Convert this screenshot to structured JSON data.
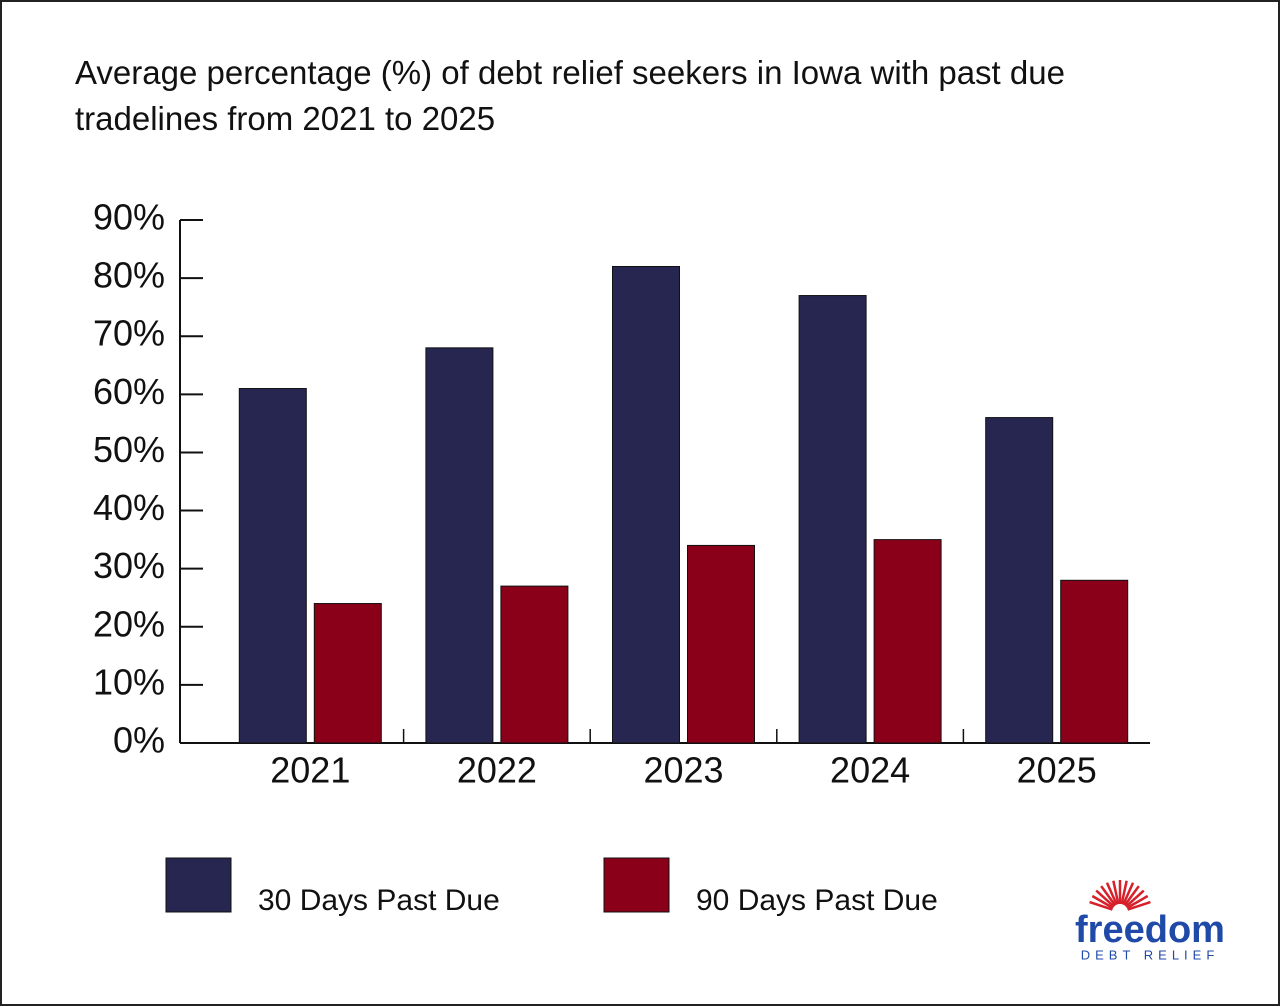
{
  "chart_data": {
    "type": "bar",
    "title": "Average percentage (%) of debt relief seekers in Iowa with past due tradelines from 2021 to 2025",
    "categories": [
      "2021",
      "2022",
      "2023",
      "2024",
      "2025"
    ],
    "series": [
      {
        "name": "30 Days Past Due",
        "color": "#272651",
        "values": [
          61,
          68,
          82,
          77,
          56
        ]
      },
      {
        "name": "90 Days Past Due",
        "color": "#8b0019",
        "values": [
          24,
          27,
          34,
          35,
          28
        ]
      }
    ],
    "ylim": [
      0,
      90
    ],
    "yticks": [
      {
        "value": 0,
        "label": "0%"
      },
      {
        "value": 10,
        "label": "10%"
      },
      {
        "value": 20,
        "label": "20%"
      },
      {
        "value": 30,
        "label": "30%"
      },
      {
        "value": 40,
        "label": "40%"
      },
      {
        "value": 50,
        "label": "50%"
      },
      {
        "value": 60,
        "label": "60%"
      },
      {
        "value": 70,
        "label": "70%"
      },
      {
        "value": 80,
        "label": "80%"
      },
      {
        "value": 90,
        "label": "90%"
      }
    ],
    "grid": false,
    "legend": "bottom",
    "logo": {
      "name": "freedom",
      "tagline": "DEBT RELIEF"
    }
  }
}
